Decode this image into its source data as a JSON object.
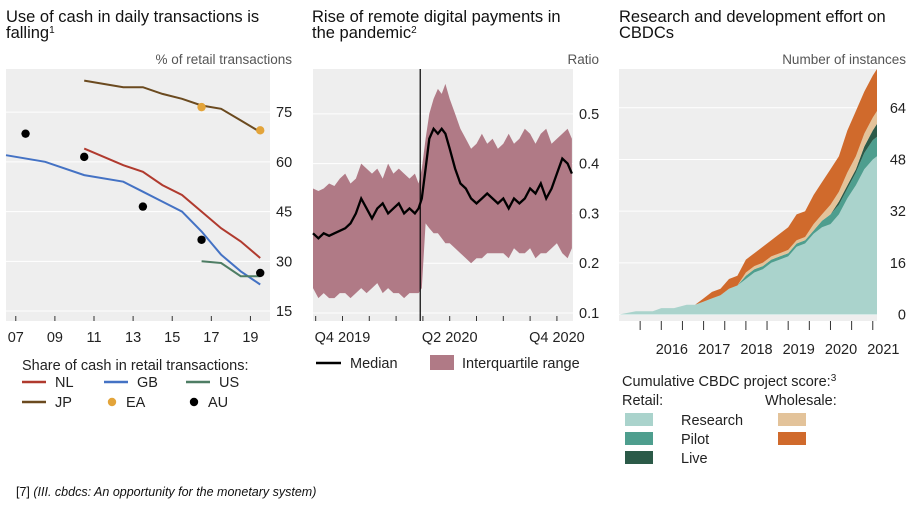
{
  "caption": {
    "ref": "[7]",
    "text": "(III. cbdcs: An opportunity for the monetary system)"
  },
  "chart_data": [
    {
      "type": "line",
      "title": "Use of cash in daily transactions is falling",
      "title_footnote": "1",
      "unit_label": "% of retail transactions",
      "x_ticks": [
        "07",
        "09",
        "11",
        "13",
        "15",
        "17",
        "19"
      ],
      "y_ticks": [
        "15",
        "30",
        "45",
        "60",
        "75"
      ],
      "xlim": [
        2006.5,
        2020.0
      ],
      "ylim": [
        12,
        88
      ],
      "legend_title": "Share of cash in retail transactions:",
      "colors": {
        "NL": "#b03a2e",
        "GB": "#4472c4",
        "EA": "#e3a43a",
        "US": "#4e7d64",
        "JP": "#6b4a1f",
        "AU": "#000000"
      },
      "series": [
        {
          "name": "NL",
          "kind": "line",
          "x": [
            2010.5,
            2012.5,
            2013.5,
            2014.5,
            2015.5,
            2016.5,
            2017.5,
            2018.5,
            2019.5
          ],
          "y": [
            64,
            59,
            57,
            53,
            50,
            45,
            40,
            36,
            31
          ]
        },
        {
          "name": "GB",
          "kind": "line",
          "x": [
            2006.5,
            2008.5,
            2010.5,
            2012.5,
            2013.5,
            2014.5,
            2015.5,
            2016.5,
            2017.5,
            2018.5,
            2019.5
          ],
          "y": [
            62,
            60,
            56,
            54,
            51,
            48,
            45,
            39,
            32,
            27,
            23
          ]
        },
        {
          "name": "US",
          "kind": "line",
          "x": [
            2016.5,
            2017.5,
            2018.5,
            2019.5
          ],
          "y": [
            30,
            29.5,
            25.5,
            25.5
          ]
        },
        {
          "name": "JP",
          "kind": "line",
          "x": [
            2010.5,
            2012.5,
            2013.5,
            2014.5,
            2015.5,
            2016.5,
            2017.5,
            2018.5,
            2019.5
          ],
          "y": [
            84.5,
            82.5,
            82.5,
            80.5,
            79,
            77,
            76,
            72.5,
            69
          ]
        },
        {
          "name": "EA",
          "kind": "points",
          "x": [
            2016.5,
            2019.5
          ],
          "y": [
            76.5,
            69.5
          ]
        },
        {
          "name": "AU",
          "kind": "points",
          "x": [
            2007.5,
            2010.5,
            2013.5,
            2016.5,
            2019.5
          ],
          "y": [
            68.5,
            61.5,
            46.5,
            36.5,
            26.5
          ]
        }
      ]
    },
    {
      "type": "area",
      "title": "Rise of remote digital payments in the pandemic",
      "title_footnote": "2",
      "unit_label": "Ratio",
      "x_ticks": [
        "Q4 2019",
        "Q2 2020",
        "Q4 2020"
      ],
      "x_tick_positions": [
        0.0,
        2.0,
        4.0
      ],
      "y_ticks": [
        "0.1",
        "0.2",
        "0.3",
        "0.4",
        "0.5"
      ],
      "y_tick_values": [
        0.1,
        0.2,
        0.3,
        0.4,
        0.5
      ],
      "xlim": [
        -0.55,
        4.3
      ],
      "ylim": [
        0.1,
        0.59
      ],
      "event_line_x": 1.45,
      "colors": {
        "band": "#b07a86",
        "median": "#000000",
        "event": "#000000"
      },
      "legend": [
        "Median",
        "Interquartile range"
      ],
      "series": [
        {
          "name": "Interquartile range upper",
          "x": [
            -0.55,
            -0.45,
            -0.35,
            -0.25,
            -0.15,
            -0.05,
            0.05,
            0.15,
            0.25,
            0.35,
            0.45,
            0.55,
            0.65,
            0.75,
            0.85,
            0.95,
            1.05,
            1.15,
            1.25,
            1.35,
            1.42,
            1.48,
            1.55,
            1.62,
            1.7,
            1.78,
            1.85,
            1.92,
            2.0,
            2.1,
            2.2,
            2.3,
            2.4,
            2.5,
            2.6,
            2.7,
            2.8,
            2.9,
            3.0,
            3.1,
            3.2,
            3.3,
            3.4,
            3.5,
            3.6,
            3.7,
            3.8,
            3.9,
            4.0,
            4.1,
            4.2,
            4.28
          ],
          "y": [
            0.35,
            0.345,
            0.35,
            0.36,
            0.355,
            0.37,
            0.38,
            0.36,
            0.37,
            0.4,
            0.39,
            0.38,
            0.39,
            0.37,
            0.4,
            0.38,
            0.39,
            0.38,
            0.37,
            0.38,
            0.36,
            0.39,
            0.45,
            0.5,
            0.53,
            0.55,
            0.54,
            0.56,
            0.53,
            0.5,
            0.47,
            0.45,
            0.43,
            0.44,
            0.46,
            0.44,
            0.45,
            0.43,
            0.44,
            0.46,
            0.44,
            0.45,
            0.47,
            0.46,
            0.44,
            0.46,
            0.47,
            0.44,
            0.45,
            0.46,
            0.47,
            0.45
          ]
        },
        {
          "name": "Interquartile range lower",
          "x": [
            -0.55,
            -0.45,
            -0.35,
            -0.25,
            -0.15,
            -0.05,
            0.05,
            0.15,
            0.25,
            0.35,
            0.45,
            0.55,
            0.65,
            0.75,
            0.85,
            0.95,
            1.05,
            1.15,
            1.25,
            1.35,
            1.42,
            1.48,
            1.55,
            1.62,
            1.7,
            1.78,
            1.85,
            1.92,
            2.0,
            2.1,
            2.2,
            2.3,
            2.4,
            2.5,
            2.6,
            2.7,
            2.8,
            2.9,
            3.0,
            3.1,
            3.2,
            3.3,
            3.4,
            3.5,
            3.6,
            3.7,
            3.8,
            3.9,
            4.0,
            4.1,
            4.2,
            4.28
          ],
          "y": [
            0.15,
            0.13,
            0.14,
            0.13,
            0.13,
            0.14,
            0.14,
            0.13,
            0.14,
            0.15,
            0.14,
            0.15,
            0.16,
            0.14,
            0.15,
            0.14,
            0.14,
            0.13,
            0.14,
            0.14,
            0.14,
            0.15,
            0.28,
            0.27,
            0.26,
            0.26,
            0.25,
            0.24,
            0.24,
            0.23,
            0.22,
            0.21,
            0.2,
            0.21,
            0.21,
            0.22,
            0.22,
            0.22,
            0.22,
            0.21,
            0.23,
            0.22,
            0.22,
            0.23,
            0.21,
            0.22,
            0.22,
            0.23,
            0.24,
            0.22,
            0.21,
            0.23
          ]
        },
        {
          "name": "Median",
          "x": [
            -0.55,
            -0.45,
            -0.35,
            -0.25,
            -0.15,
            -0.05,
            0.05,
            0.15,
            0.25,
            0.35,
            0.45,
            0.55,
            0.65,
            0.75,
            0.85,
            0.95,
            1.05,
            1.15,
            1.25,
            1.35,
            1.42,
            1.48,
            1.55,
            1.62,
            1.7,
            1.78,
            1.85,
            1.92,
            2.0,
            2.1,
            2.2,
            2.3,
            2.4,
            2.5,
            2.6,
            2.7,
            2.8,
            2.9,
            3.0,
            3.1,
            3.2,
            3.3,
            3.4,
            3.5,
            3.6,
            3.7,
            3.8,
            3.9,
            4.0,
            4.1,
            4.2,
            4.28
          ],
          "y": [
            0.26,
            0.25,
            0.26,
            0.255,
            0.26,
            0.265,
            0.27,
            0.28,
            0.3,
            0.33,
            0.31,
            0.29,
            0.31,
            0.32,
            0.3,
            0.31,
            0.32,
            0.3,
            0.31,
            0.3,
            0.31,
            0.33,
            0.39,
            0.45,
            0.47,
            0.46,
            0.47,
            0.46,
            0.43,
            0.39,
            0.36,
            0.35,
            0.33,
            0.32,
            0.33,
            0.34,
            0.33,
            0.32,
            0.33,
            0.31,
            0.33,
            0.32,
            0.33,
            0.35,
            0.34,
            0.36,
            0.33,
            0.35,
            0.38,
            0.41,
            0.4,
            0.38
          ]
        }
      ]
    },
    {
      "type": "area",
      "stacked": true,
      "title": "Research and development effort on CBDCs",
      "unit_label": "Number of instances",
      "x_ticks": [
        "2016",
        "2017",
        "2018",
        "2019",
        "2020",
        "2021"
      ],
      "x_tick_values": [
        2016,
        2017,
        2018,
        2019,
        2020,
        2021
      ],
      "y_ticks": [
        "0",
        "16",
        "32",
        "48",
        "64"
      ],
      "y_tick_values": [
        0,
        16,
        32,
        48,
        64
      ],
      "xlim": [
        2015.0,
        2021.1
      ],
      "ylim": [
        -2,
        76
      ],
      "legend_title": "Cumulative CBDC project score:",
      "legend_title_footnote": "3",
      "legend_group_retail": "Retail:",
      "legend_group_wholesale": "Wholesale:",
      "legend_entries": [
        "Research",
        "Pilot",
        "Live"
      ],
      "colors": {
        "Research": "#aad3cc",
        "Pilot": "#4e9e8e",
        "Live": "#2b5a48",
        "Wholesale research": "#e3c39a",
        "Wholesale pilot": "#d06a2c"
      },
      "x": [
        2015.0,
        2015.4,
        2015.8,
        2016.0,
        2016.3,
        2016.6,
        2016.8,
        2017.0,
        2017.2,
        2017.4,
        2017.6,
        2017.8,
        2018.0,
        2018.2,
        2018.4,
        2018.6,
        2018.8,
        2019.0,
        2019.2,
        2019.4,
        2019.6,
        2019.8,
        2020.0,
        2020.2,
        2020.4,
        2020.6,
        2020.8,
        2021.0,
        2021.1
      ],
      "series": [
        {
          "name": "Research",
          "values": [
            0,
            1,
            1,
            2,
            2,
            3,
            3,
            4,
            5,
            6,
            8,
            9,
            11,
            13,
            14,
            16,
            17,
            18,
            21,
            22,
            25,
            27,
            28,
            31,
            36,
            40,
            45,
            48,
            49
          ]
        },
        {
          "name": "Pilot",
          "values": [
            0,
            0,
            0,
            0,
            0,
            0,
            0,
            0,
            0,
            0,
            0,
            0,
            1,
            1,
            1,
            1,
            1,
            1,
            1,
            1,
            1,
            2,
            3,
            3,
            3,
            4,
            5,
            6,
            6
          ]
        },
        {
          "name": "Live",
          "values": [
            0,
            0,
            0,
            0,
            0,
            0,
            0,
            0,
            0,
            0,
            0,
            0,
            0,
            0,
            0,
            0,
            0,
            0,
            0,
            0,
            0,
            0,
            0,
            1,
            1,
            1,
            2,
            3,
            4
          ]
        },
        {
          "name": "Wholesale research",
          "values": [
            0,
            0,
            0,
            0,
            0,
            0,
            0,
            0,
            0,
            0,
            0,
            0,
            1,
            1,
            1,
            1,
            1,
            1,
            1,
            1,
            2,
            2,
            3,
            3,
            4,
            4,
            4,
            4,
            4
          ]
        },
        {
          "name": "Wholesale pilot",
          "values": [
            0,
            0,
            0,
            0,
            0,
            0,
            0,
            1,
            2,
            2,
            3,
            3,
            4,
            4,
            5,
            5,
            6,
            7,
            8,
            8,
            9,
            10,
            11,
            11,
            13,
            14,
            13,
            13,
            13
          ]
        }
      ]
    }
  ]
}
